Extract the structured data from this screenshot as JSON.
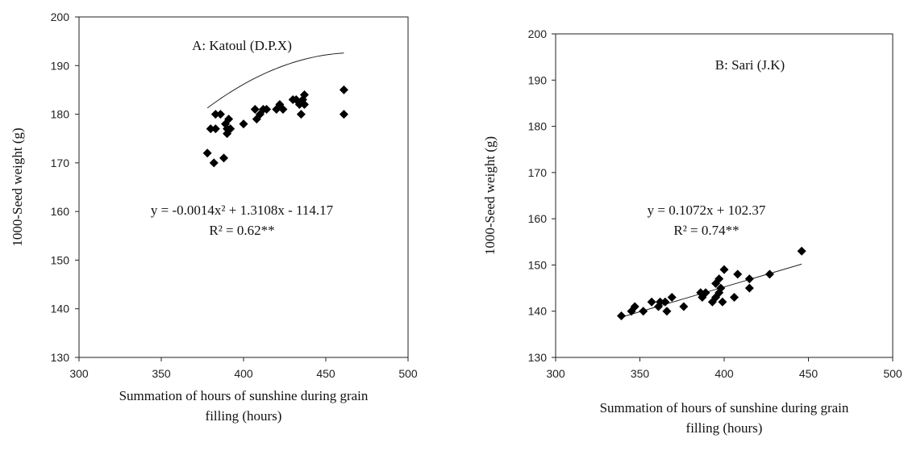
{
  "chart_data": [
    {
      "type": "scatter",
      "title": "A: Katoul (D.P.X)",
      "xlabel": [
        "Summation of hours of sunshine during grain",
        "filling (hours)"
      ],
      "ylabel": "1000-Seed weight (g)",
      "xlim": [
        300,
        500
      ],
      "ylim": [
        130,
        200
      ],
      "xticks": [
        300,
        350,
        400,
        450,
        500
      ],
      "yticks": [
        130,
        140,
        150,
        160,
        170,
        180,
        190,
        200
      ],
      "grid": false,
      "equation": "y = -0.0014x² + 1.3108x - 114.17",
      "r2": "R² = 0.62**",
      "trend": {
        "kind": "quadratic",
        "a": -0.0014,
        "b": 1.3108,
        "c": -114.17,
        "x_range": [
          378,
          461
        ]
      },
      "points": [
        [
          378,
          172
        ],
        [
          380,
          177
        ],
        [
          382,
          170
        ],
        [
          383,
          177
        ],
        [
          383,
          180
        ],
        [
          386,
          180
        ],
        [
          388,
          171
        ],
        [
          389,
          178
        ],
        [
          390,
          176
        ],
        [
          390,
          177
        ],
        [
          391,
          179
        ],
        [
          392,
          177
        ],
        [
          400,
          178
        ],
        [
          407,
          181
        ],
        [
          408,
          179
        ],
        [
          410,
          180
        ],
        [
          412,
          181
        ],
        [
          414,
          181
        ],
        [
          420,
          181
        ],
        [
          422,
          182
        ],
        [
          424,
          181
        ],
        [
          430,
          183
        ],
        [
          432,
          183
        ],
        [
          434,
          182
        ],
        [
          435,
          180
        ],
        [
          436,
          183
        ],
        [
          437,
          184
        ],
        [
          437,
          182
        ],
        [
          461,
          185
        ],
        [
          461,
          180
        ]
      ]
    },
    {
      "type": "scatter",
      "title": "B: Sari (J.K)",
      "xlabel": [
        "Summation of hours of sunshine during grain",
        "filling (hours)"
      ],
      "ylabel": "1000-Seed weight (g)",
      "xlim": [
        300,
        500
      ],
      "ylim": [
        130,
        200
      ],
      "xticks": [
        300,
        350,
        400,
        450,
        500
      ],
      "yticks": [
        130,
        140,
        150,
        160,
        170,
        180,
        190,
        200
      ],
      "grid": false,
      "equation": "y = 0.1072x + 102.37",
      "r2": "R² = 0.74**",
      "trend": {
        "kind": "linear",
        "m": 0.1072,
        "c": 102.37,
        "x_range": [
          340,
          446
        ]
      },
      "points": [
        [
          339,
          139
        ],
        [
          345,
          140
        ],
        [
          347,
          141
        ],
        [
          352,
          140
        ],
        [
          357,
          142
        ],
        [
          361,
          141
        ],
        [
          362,
          142
        ],
        [
          365,
          142
        ],
        [
          366,
          140
        ],
        [
          369,
          143
        ],
        [
          376,
          141
        ],
        [
          386,
          144
        ],
        [
          387,
          143
        ],
        [
          389,
          144
        ],
        [
          393,
          142
        ],
        [
          395,
          143
        ],
        [
          395,
          146
        ],
        [
          397,
          147
        ],
        [
          397,
          144
        ],
        [
          398,
          145
        ],
        [
          399,
          142
        ],
        [
          400,
          149
        ],
        [
          406,
          143
        ],
        [
          408,
          148
        ],
        [
          415,
          147
        ],
        [
          415,
          145
        ],
        [
          427,
          148
        ],
        [
          446,
          153
        ]
      ]
    }
  ]
}
